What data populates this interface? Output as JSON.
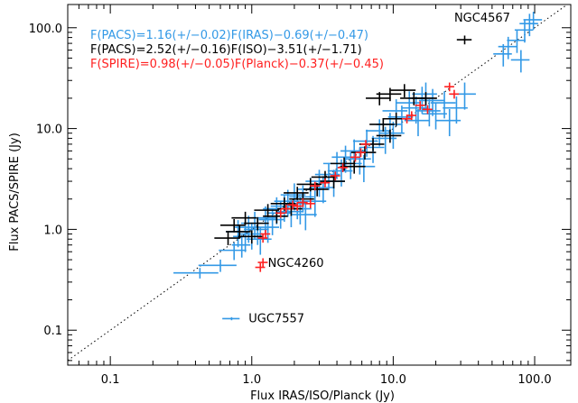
{
  "chart_data": {
    "type": "scatter",
    "xlabel": "Flux IRAS/ISO/Planck (Jy)",
    "ylabel": "Flux PACS/SPIRE (Jy)",
    "xscale": "log",
    "yscale": "log",
    "xlim": [
      0.05,
      180
    ],
    "ylim": [
      0.045,
      170
    ],
    "xticks": [
      {
        "value": 0.1,
        "label": "0.1"
      },
      {
        "value": 1,
        "label": "1.0"
      },
      {
        "value": 10,
        "label": "10.0"
      },
      {
        "value": 100,
        "label": "100.0"
      }
    ],
    "yticks": [
      {
        "value": 0.1,
        "label": "0.1"
      },
      {
        "value": 1,
        "label": "1.0"
      },
      {
        "value": 10,
        "label": "10.0"
      },
      {
        "value": 100,
        "label": "100.0"
      }
    ],
    "one_to_one_line": true,
    "fits": [
      {
        "text": "F(PACS)=1.16(+/−0.02)F(IRAS)−0.69(+/−0.47)",
        "color": "#3399e6"
      },
      {
        "text": "F(PACS)=2.52(+/−0.16)F(ISO)−3.51(+/−1.71)",
        "color": "#000000"
      },
      {
        "text": "F(SPIRE)=0.98(+/−0.05)F(Planck)−0.37(+/−0.45)",
        "color": "#ff2020"
      }
    ],
    "annotations": [
      {
        "text": "NGC4567",
        "x": 27,
        "y": 125
      },
      {
        "text": "NGC4260",
        "x": 1.3,
        "y": 0.46
      },
      {
        "text": "UGC7557",
        "x": 0.95,
        "y": 0.13
      }
    ],
    "series": [
      {
        "color": "#3399e6",
        "points": [
          [
            0.43,
            0.37,
            0.35,
            0.12
          ],
          [
            0.6,
            0.44,
            0.3,
            0.14
          ],
          [
            0.72,
            0.13,
            0.14,
            0.035
          ],
          [
            0.75,
            0.62,
            0.22,
            0.2
          ],
          [
            0.8,
            0.95,
            0.18,
            0.3
          ],
          [
            0.85,
            0.7,
            0.15,
            0.25
          ],
          [
            0.9,
            0.85,
            0.18,
            0.3
          ],
          [
            0.95,
            1.05,
            0.2,
            0.3
          ],
          [
            1.0,
            0.9,
            0.2,
            0.3
          ],
          [
            1.05,
            1.15,
            0.2,
            0.3
          ],
          [
            1.1,
            1.0,
            0.2,
            0.3
          ],
          [
            1.15,
            0.8,
            0.2,
            0.3
          ],
          [
            1.25,
            1.3,
            0.2,
            0.3
          ],
          [
            1.3,
            1.05,
            0.2,
            0.3
          ],
          [
            1.4,
            1.25,
            0.2,
            0.3
          ],
          [
            1.5,
            1.6,
            0.2,
            0.3
          ],
          [
            1.6,
            1.45,
            0.2,
            0.3
          ],
          [
            1.7,
            1.7,
            0.2,
            0.3
          ],
          [
            1.8,
            1.9,
            0.2,
            0.3
          ],
          [
            1.9,
            1.5,
            0.2,
            0.3
          ],
          [
            2.0,
            2.2,
            0.2,
            0.3
          ],
          [
            2.1,
            1.8,
            0.2,
            0.3
          ],
          [
            2.2,
            1.6,
            0.2,
            0.3
          ],
          [
            2.3,
            2.1,
            0.2,
            0.3
          ],
          [
            2.4,
            1.4,
            0.2,
            0.3
          ],
          [
            2.6,
            2.5,
            0.2,
            0.3
          ],
          [
            2.8,
            1.9,
            0.2,
            0.3
          ],
          [
            3.0,
            3.0,
            0.2,
            0.3
          ],
          [
            3.2,
            2.6,
            0.2,
            0.3
          ],
          [
            3.5,
            3.5,
            0.2,
            0.3
          ],
          [
            3.8,
            3.0,
            0.2,
            0.3
          ],
          [
            4.0,
            4.5,
            0.2,
            0.3
          ],
          [
            4.3,
            3.8,
            0.2,
            0.3
          ],
          [
            4.6,
            5.2,
            0.2,
            0.3
          ],
          [
            5.0,
            4.5,
            0.2,
            0.3
          ],
          [
            5.3,
            6.0,
            0.2,
            0.3
          ],
          [
            5.8,
            5.0,
            0.2,
            0.3
          ],
          [
            6.2,
            4.2,
            0.2,
            0.3
          ],
          [
            6.5,
            7.5,
            0.2,
            0.3
          ],
          [
            7.2,
            6.5,
            0.2,
            0.3
          ],
          [
            8.0,
            9.5,
            0.2,
            0.3
          ],
          [
            8.8,
            8.0,
            0.2,
            0.3
          ],
          [
            9.5,
            11.0,
            0.2,
            0.3
          ],
          [
            10.0,
            9.0,
            0.2,
            0.3
          ],
          [
            10.5,
            15.0,
            0.2,
            0.3
          ],
          [
            11.5,
            13.0,
            0.2,
            0.3
          ],
          [
            13.0,
            18.0,
            0.2,
            0.3
          ],
          [
            14.5,
            16.0,
            0.2,
            0.3
          ],
          [
            15.0,
            12.0,
            0.2,
            0.3
          ],
          [
            16.0,
            20.0,
            0.2,
            0.3
          ],
          [
            17.0,
            22.0,
            0.2,
            0.3
          ],
          [
            18.0,
            15.0,
            0.2,
            0.3
          ],
          [
            19.0,
            19.0,
            0.2,
            0.3
          ],
          [
            20.0,
            14.0,
            0.2,
            0.3
          ],
          [
            23.0,
            18.0,
            0.2,
            0.3
          ],
          [
            25.0,
            12.0,
            0.2,
            0.3
          ],
          [
            28.0,
            16.0,
            0.2,
            0.3
          ],
          [
            32.0,
            22.0,
            0.2,
            0.3
          ],
          [
            60.0,
            55.0,
            0.15,
            0.25
          ],
          [
            65.0,
            65.0,
            0.15,
            0.25
          ],
          [
            75.0,
            75.0,
            0.15,
            0.25
          ],
          [
            80.0,
            48.0,
            0.15,
            0.25
          ],
          [
            85.0,
            95.0,
            0.15,
            0.25
          ],
          [
            92.0,
            110.0,
            0.15,
            0.25
          ],
          [
            98.0,
            120.0,
            0.15,
            0.2
          ]
        ]
      },
      {
        "color": "#000000",
        "points": [
          [
            0.68,
            0.82,
            0.2,
            0.15
          ],
          [
            0.75,
            1.1,
            0.2,
            0.15
          ],
          [
            0.82,
            0.95,
            0.2,
            0.15
          ],
          [
            0.9,
            1.3,
            0.2,
            0.15
          ],
          [
            1.0,
            0.85,
            0.2,
            0.15
          ],
          [
            1.1,
            1.15,
            0.2,
            0.15
          ],
          [
            1.3,
            1.55,
            0.2,
            0.15
          ],
          [
            1.5,
            1.35,
            0.2,
            0.15
          ],
          [
            1.7,
            1.8,
            0.2,
            0.15
          ],
          [
            1.9,
            1.6,
            0.2,
            0.15
          ],
          [
            2.1,
            2.3,
            0.2,
            0.15
          ],
          [
            2.3,
            2.0,
            0.2,
            0.15
          ],
          [
            2.6,
            2.8,
            0.2,
            0.15
          ],
          [
            2.9,
            2.5,
            0.2,
            0.15
          ],
          [
            3.3,
            3.3,
            0.2,
            0.15
          ],
          [
            3.8,
            3.0,
            0.2,
            0.15
          ],
          [
            4.5,
            4.5,
            0.2,
            0.15
          ],
          [
            5.3,
            4.2,
            0.2,
            0.15
          ],
          [
            6.3,
            5.8,
            0.2,
            0.15
          ],
          [
            7.2,
            7.0,
            0.2,
            0.15
          ],
          [
            8.5,
            11.0,
            0.2,
            0.15
          ],
          [
            9.5,
            8.5,
            0.2,
            0.15
          ],
          [
            10.5,
            12.5,
            0.2,
            0.15
          ],
          [
            8.0,
            20.0,
            0.2,
            0.15
          ],
          [
            9.5,
            22.0,
            0.2,
            0.15
          ],
          [
            12.0,
            24.0,
            0.2,
            0.15
          ],
          [
            14.0,
            20.0,
            0.2,
            0.15
          ],
          [
            17.0,
            20.0,
            0.2,
            0.15
          ],
          [
            32.0,
            76.0,
            0.12,
            0.1
          ]
        ]
      },
      {
        "color": "#ff2020",
        "points": [
          [
            1.15,
            0.42,
            0.08,
            0.1
          ],
          [
            1.2,
            0.47,
            0.08,
            0.1
          ],
          [
            1.2,
            0.82,
            0.08,
            0.1
          ],
          [
            1.25,
            0.9,
            0.08,
            0.1
          ],
          [
            1.6,
            1.45,
            0.08,
            0.1
          ],
          [
            1.75,
            1.6,
            0.08,
            0.1
          ],
          [
            1.95,
            1.75,
            0.08,
            0.1
          ],
          [
            2.1,
            1.7,
            0.08,
            0.1
          ],
          [
            2.3,
            1.85,
            0.08,
            0.1
          ],
          [
            2.6,
            1.8,
            0.08,
            0.1
          ],
          [
            2.8,
            2.7,
            0.08,
            0.1
          ],
          [
            3.3,
            2.9,
            0.08,
            0.1
          ],
          [
            3.9,
            3.4,
            0.08,
            0.1
          ],
          [
            4.4,
            4.1,
            0.08,
            0.1
          ],
          [
            5.4,
            5.2,
            0.08,
            0.1
          ],
          [
            5.9,
            5.8,
            0.08,
            0.1
          ],
          [
            6.4,
            7.0,
            0.08,
            0.1
          ],
          [
            12.5,
            12.5,
            0.08,
            0.1
          ],
          [
            13.5,
            13.5,
            0.08,
            0.1
          ],
          [
            15.5,
            17.0,
            0.08,
            0.1
          ],
          [
            17.5,
            15.5,
            0.08,
            0.1
          ],
          [
            25.0,
            26.0,
            0.08,
            0.1
          ],
          [
            27.0,
            22.0,
            0.08,
            0.1
          ]
        ]
      }
    ]
  }
}
